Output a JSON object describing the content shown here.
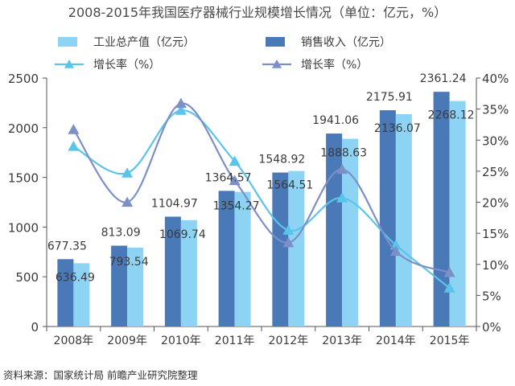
{
  "title": "2008-2015年我国医疗器械行业规模增长情况（单位：亿元，%）",
  "source": "资料来源：国家统计局 前瞻产业研究院整理",
  "chart_data": {
    "type": "bar",
    "categories": [
      "2008年",
      "2009年",
      "2010年",
      "2011年",
      "2012年",
      "2013年",
      "2014年",
      "2015年"
    ],
    "ylim": [
      0,
      2500
    ],
    "y_ticks": [
      "0",
      "500",
      "1000",
      "1500",
      "2000",
      "2500"
    ],
    "y2lim": [
      0,
      40
    ],
    "y2_ticks": [
      "0%",
      "5%",
      "10%",
      "15%",
      "20%",
      "25%",
      "30%",
      "35%",
      "40%"
    ],
    "legend_position": "top",
    "series": [
      {
        "name": "销售收入（亿元）",
        "kind": "bar",
        "axis": "left",
        "color": "#4a79b8",
        "values": [
          677.35,
          813.09,
          1104.97,
          1364.57,
          1548.92,
          1941.06,
          2175.91,
          2361.24
        ],
        "labels": [
          "677.35",
          "813.09",
          "1104.97",
          "1364.57",
          "1548.92",
          "1941.06",
          "2175.91",
          "2361.24"
        ]
      },
      {
        "name": "工业总产值（亿元）",
        "kind": "bar",
        "axis": "left",
        "color": "#8dd3f4",
        "values": [
          636.49,
          793.54,
          1069.74,
          1354.27,
          1564.51,
          1888.63,
          2136.07,
          2268.12
        ],
        "labels": [
          "636.49",
          "793.54",
          "1069.74",
          "1354.27",
          "1564.51",
          "1888.63",
          "2136.07",
          "2268.12"
        ]
      },
      {
        "name": "增长率（%）",
        "kind": "line",
        "axis": "right",
        "color": "#5bc4ea",
        "marker": "triangle",
        "values": [
          29.0,
          24.7,
          34.8,
          26.6,
          15.5,
          20.7,
          13.1,
          6.2
        ]
      },
      {
        "name": "增长率（%）",
        "kind": "line",
        "axis": "right",
        "color": "#7c8fc6",
        "marker": "triangle",
        "values": [
          31.7,
          20.0,
          35.9,
          23.5,
          13.5,
          25.3,
          12.1,
          8.7
        ]
      }
    ]
  }
}
